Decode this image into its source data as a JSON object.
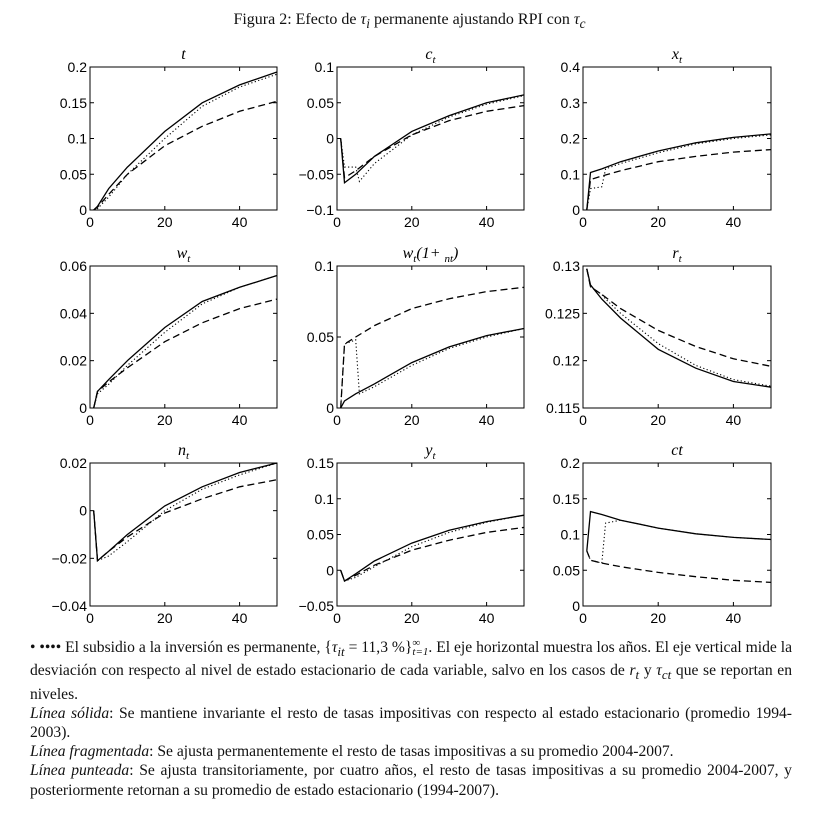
{
  "figure_title": {
    "prefix": "Figura 2: Efecto de ",
    "sym1": "τ",
    "sub1": "i",
    "middle": " permanente ajustando RPI con ",
    "sym2": "τ",
    "sub2": "c"
  },
  "line_styles": {
    "solid": "#000000",
    "dashed": "#000000",
    "dotted": "#000000"
  },
  "chart_data": [
    {
      "type": "line",
      "title_parts": [
        {
          "t": "t"
        }
      ],
      "xlim": [
        0,
        50
      ],
      "ylim": [
        0,
        0.2
      ],
      "xticks": [
        "0",
        "20",
        "40"
      ],
      "yticks": [
        "0",
        "0.05",
        "0.1",
        "0.15",
        "0.2"
      ],
      "series": [
        {
          "style": "solid",
          "x": [
            1,
            2,
            5,
            10,
            20,
            30,
            40,
            50
          ],
          "y": [
            0,
            0.005,
            0.03,
            0.06,
            0.11,
            0.15,
            0.175,
            0.193
          ]
        },
        {
          "style": "dashed",
          "x": [
            1,
            2,
            5,
            10,
            20,
            30,
            40,
            50
          ],
          "y": [
            0,
            0.004,
            0.022,
            0.05,
            0.09,
            0.117,
            0.138,
            0.152
          ]
        },
        {
          "style": "dotted",
          "x": [
            1,
            2,
            5,
            10,
            20,
            30,
            40,
            50
          ],
          "y": [
            0,
            0.002,
            0.018,
            0.05,
            0.1,
            0.145,
            0.172,
            0.19
          ]
        }
      ]
    },
    {
      "type": "line",
      "title_parts": [
        {
          "t": "c"
        },
        {
          "s": "t"
        }
      ],
      "xlim": [
        0,
        50
      ],
      "ylim": [
        -0.1,
        0.1
      ],
      "xticks": [
        "0",
        "20",
        "40"
      ],
      "yticks": [
        "−0.1",
        "−0.05",
        "0",
        "0.05",
        "0.1"
      ],
      "series": [
        {
          "style": "solid",
          "x": [
            1,
            2,
            5,
            10,
            20,
            30,
            40,
            50
          ],
          "y": [
            0,
            -0.062,
            -0.05,
            -0.025,
            0.01,
            0.032,
            0.05,
            0.061
          ]
        },
        {
          "style": "dashed",
          "x": [
            1,
            2,
            5,
            10,
            20,
            30,
            40,
            50
          ],
          "y": [
            0,
            -0.055,
            -0.045,
            -0.025,
            0.005,
            0.025,
            0.038,
            0.046
          ]
        },
        {
          "style": "dotted",
          "x": [
            1,
            2,
            5,
            6,
            10,
            20,
            30,
            40,
            50
          ],
          "y": [
            0,
            -0.04,
            -0.04,
            -0.06,
            -0.035,
            0.005,
            0.03,
            0.048,
            0.06
          ]
        }
      ]
    },
    {
      "type": "line",
      "title_parts": [
        {
          "t": "x"
        },
        {
          "s": "t"
        }
      ],
      "xlim": [
        0,
        50
      ],
      "ylim": [
        0,
        0.4
      ],
      "xticks": [
        "0",
        "20",
        "40"
      ],
      "yticks": [
        "0",
        "0.1",
        "0.2",
        "0.3",
        "0.4"
      ],
      "series": [
        {
          "style": "solid",
          "x": [
            1,
            2,
            5,
            10,
            20,
            30,
            40,
            50
          ],
          "y": [
            0,
            0.105,
            0.115,
            0.135,
            0.165,
            0.188,
            0.203,
            0.213
          ]
        },
        {
          "style": "dashed",
          "x": [
            1,
            2,
            5,
            10,
            20,
            30,
            40,
            50
          ],
          "y": [
            0,
            0.085,
            0.095,
            0.11,
            0.135,
            0.15,
            0.162,
            0.169
          ]
        },
        {
          "style": "dotted",
          "x": [
            1,
            2,
            5,
            6,
            10,
            20,
            30,
            40,
            50
          ],
          "y": [
            0,
            0.06,
            0.065,
            0.115,
            0.13,
            0.16,
            0.185,
            0.2,
            0.21
          ]
        }
      ]
    },
    {
      "type": "line",
      "title_parts": [
        {
          "t": "w"
        },
        {
          "s": "t"
        }
      ],
      "xlim": [
        0,
        50
      ],
      "ylim": [
        0,
        0.06
      ],
      "xticks": [
        "0",
        "20",
        "40"
      ],
      "yticks": [
        "0",
        "0.02",
        "0.04",
        "0.06"
      ],
      "series": [
        {
          "style": "solid",
          "x": [
            1,
            2,
            5,
            10,
            20,
            30,
            40,
            50
          ],
          "y": [
            0,
            0.007,
            0.012,
            0.02,
            0.034,
            0.045,
            0.051,
            0.056
          ]
        },
        {
          "style": "dashed",
          "x": [
            1,
            2,
            5,
            10,
            20,
            30,
            40,
            50
          ],
          "y": [
            0,
            0.007,
            0.011,
            0.017,
            0.028,
            0.036,
            0.042,
            0.046
          ]
        },
        {
          "style": "dotted",
          "x": [
            1,
            2,
            5,
            10,
            20,
            30,
            40,
            50
          ],
          "y": [
            0,
            0.006,
            0.01,
            0.018,
            0.032,
            0.044,
            0.051,
            0.056
          ]
        }
      ]
    },
    {
      "type": "line",
      "title_parts": [
        {
          "t": "w"
        },
        {
          "s": "t"
        },
        {
          "t": "(1+ "
        },
        {
          "s": "nt"
        },
        {
          "t": ")"
        }
      ],
      "xlim": [
        0,
        50
      ],
      "ylim": [
        0,
        0.1
      ],
      "xticks": [
        "0",
        "20",
        "40"
      ],
      "yticks": [
        "0",
        "0.05",
        "0.1"
      ],
      "series": [
        {
          "style": "solid",
          "x": [
            1,
            2,
            5,
            10,
            20,
            30,
            40,
            50
          ],
          "y": [
            0,
            0.005,
            0.01,
            0.017,
            0.032,
            0.043,
            0.051,
            0.056
          ]
        },
        {
          "style": "dashed",
          "x": [
            1,
            2,
            5,
            10,
            20,
            30,
            40,
            50
          ],
          "y": [
            0,
            0.045,
            0.05,
            0.058,
            0.07,
            0.077,
            0.082,
            0.085
          ]
        },
        {
          "style": "dotted",
          "x": [
            1,
            2,
            5,
            6,
            10,
            20,
            30,
            40,
            50
          ],
          "y": [
            0,
            0.045,
            0.048,
            0.01,
            0.015,
            0.03,
            0.042,
            0.05,
            0.056
          ]
        }
      ]
    },
    {
      "type": "line",
      "title_parts": [
        {
          "t": "r"
        },
        {
          "s": "t"
        }
      ],
      "xlim": [
        0,
        50
      ],
      "ylim": [
        0.115,
        0.13
      ],
      "xticks": [
        "0",
        "20",
        "40"
      ],
      "yticks": [
        "0.115",
        "0.12",
        "0.125",
        "0.13"
      ],
      "series": [
        {
          "style": "solid",
          "x": [
            1,
            2,
            5,
            10,
            20,
            30,
            40,
            50
          ],
          "y": [
            0.1297,
            0.128,
            0.1265,
            0.1245,
            0.1212,
            0.1192,
            0.1178,
            0.1172
          ]
        },
        {
          "style": "dashed",
          "x": [
            1,
            2,
            5,
            10,
            20,
            30,
            40,
            50
          ],
          "y": [
            0.1297,
            0.1278,
            0.127,
            0.1255,
            0.1232,
            0.1215,
            0.1202,
            0.1194
          ]
        },
        {
          "style": "dotted",
          "x": [
            1,
            2,
            5,
            6,
            10,
            20,
            30,
            40,
            50
          ],
          "y": [
            0.1297,
            0.1278,
            0.127,
            0.1265,
            0.125,
            0.1218,
            0.1195,
            0.118,
            0.1173
          ]
        }
      ]
    },
    {
      "type": "line",
      "title_parts": [
        {
          "t": "n"
        },
        {
          "s": "t"
        }
      ],
      "xlim": [
        0,
        50
      ],
      "ylim": [
        -0.04,
        0.02
      ],
      "xticks": [
        "0",
        "20",
        "40"
      ],
      "yticks": [
        "−0.04",
        "−0.02",
        "0",
        "0.02"
      ],
      "series": [
        {
          "style": "solid",
          "x": [
            1,
            2,
            5,
            10,
            20,
            30,
            40,
            50
          ],
          "y": [
            0,
            -0.021,
            -0.017,
            -0.01,
            0.002,
            0.01,
            0.016,
            0.02
          ]
        },
        {
          "style": "dashed",
          "x": [
            1,
            2,
            5,
            10,
            20,
            30,
            40,
            50
          ],
          "y": [
            0,
            -0.021,
            -0.017,
            -0.011,
            -0.001,
            0.005,
            0.01,
            0.013
          ]
        },
        {
          "style": "dotted",
          "x": [
            1,
            2,
            5,
            10,
            20,
            30,
            40,
            50
          ],
          "y": [
            0,
            -0.021,
            -0.019,
            -0.013,
            0,
            0.009,
            0.015,
            0.02
          ]
        }
      ]
    },
    {
      "type": "line",
      "title_parts": [
        {
          "t": "y"
        },
        {
          "s": "t"
        }
      ],
      "xlim": [
        0,
        50
      ],
      "ylim": [
        -0.05,
        0.15
      ],
      "xticks": [
        "0",
        "20",
        "40"
      ],
      "yticks": [
        "−0.05",
        "0",
        "0.05",
        "0.1",
        "0.15"
      ],
      "series": [
        {
          "style": "solid",
          "x": [
            1,
            2,
            5,
            10,
            20,
            30,
            40,
            50
          ],
          "y": [
            0,
            -0.015,
            -0.005,
            0.013,
            0.038,
            0.056,
            0.068,
            0.077
          ]
        },
        {
          "style": "dashed",
          "x": [
            1,
            2,
            5,
            10,
            20,
            30,
            40,
            50
          ],
          "y": [
            0,
            -0.015,
            -0.007,
            0.007,
            0.028,
            0.042,
            0.053,
            0.06
          ]
        },
        {
          "style": "dotted",
          "x": [
            1,
            2,
            5,
            10,
            20,
            30,
            40,
            50
          ],
          "y": [
            0,
            -0.015,
            -0.01,
            0.005,
            0.033,
            0.053,
            0.067,
            0.077
          ]
        }
      ]
    },
    {
      "type": "line",
      "title_parts": [
        {
          "t": "ct"
        }
      ],
      "xlim": [
        0,
        50
      ],
      "ylim": [
        0,
        0.2
      ],
      "xticks": [
        "0",
        "20",
        "40"
      ],
      "yticks": [
        "0",
        "0.05",
        "0.1",
        "0.15",
        "0.2"
      ],
      "series": [
        {
          "style": "solid",
          "x": [
            1,
            2,
            5,
            10,
            20,
            30,
            40,
            50
          ],
          "y": [
            0.077,
            0.132,
            0.128,
            0.12,
            0.109,
            0.101,
            0.096,
            0.093
          ]
        },
        {
          "style": "dashed",
          "x": [
            1,
            2,
            5,
            10,
            20,
            30,
            40,
            50
          ],
          "y": [
            0.077,
            0.064,
            0.06,
            0.055,
            0.047,
            0.041,
            0.036,
            0.033
          ]
        },
        {
          "style": "dotted",
          "x": [
            1,
            2,
            5,
            6,
            10,
            20,
            30,
            40,
            50
          ],
          "y": [
            0.077,
            0.064,
            0.06,
            0.116,
            0.12,
            0.109,
            0.101,
            0.096,
            0.093
          ]
        }
      ]
    }
  ],
  "caption": {
    "bullets": "• ••••",
    "p1_a": " El subsidio a la inversión es permanente, {",
    "p1_tau": "τ",
    "p1_tau_sub": "it",
    "p1_eq": " = 11,3 %}",
    "p1_sup": "∞",
    "p1_sub": "t=1",
    "p1_b": ". El eje horizontal muestra los años. El eje vertical mide la desviación con respecto al nivel de estado estacionario de cada variable, salvo en los casos de ",
    "p1_r": "r",
    "p1_r_sub": "t",
    "p1_y": " y ",
    "p1_tau2": "τ",
    "p1_tau2_sub": "ct",
    "p1_c": " que se reportan en niveles.",
    "p2_label": "Línea sólida",
    "p2_text": ": Se mantiene invariante el resto de tasas impositivas con respecto al estado estacionario (promedio 1994-2003).",
    "p3_label": "Línea fragmentada",
    "p3_text": ": Se ajusta permanentemente el resto de tasas impositivas a su promedio 2004-2007.",
    "p4_label": "Línea punteada",
    "p4_text": ": Se ajusta transitoriamente, por cuatro años, el resto de tasas impositivas a su promedio 2004-2007, y posteriormente retornan a su promedio de estado estacionario (1994-2007)."
  }
}
